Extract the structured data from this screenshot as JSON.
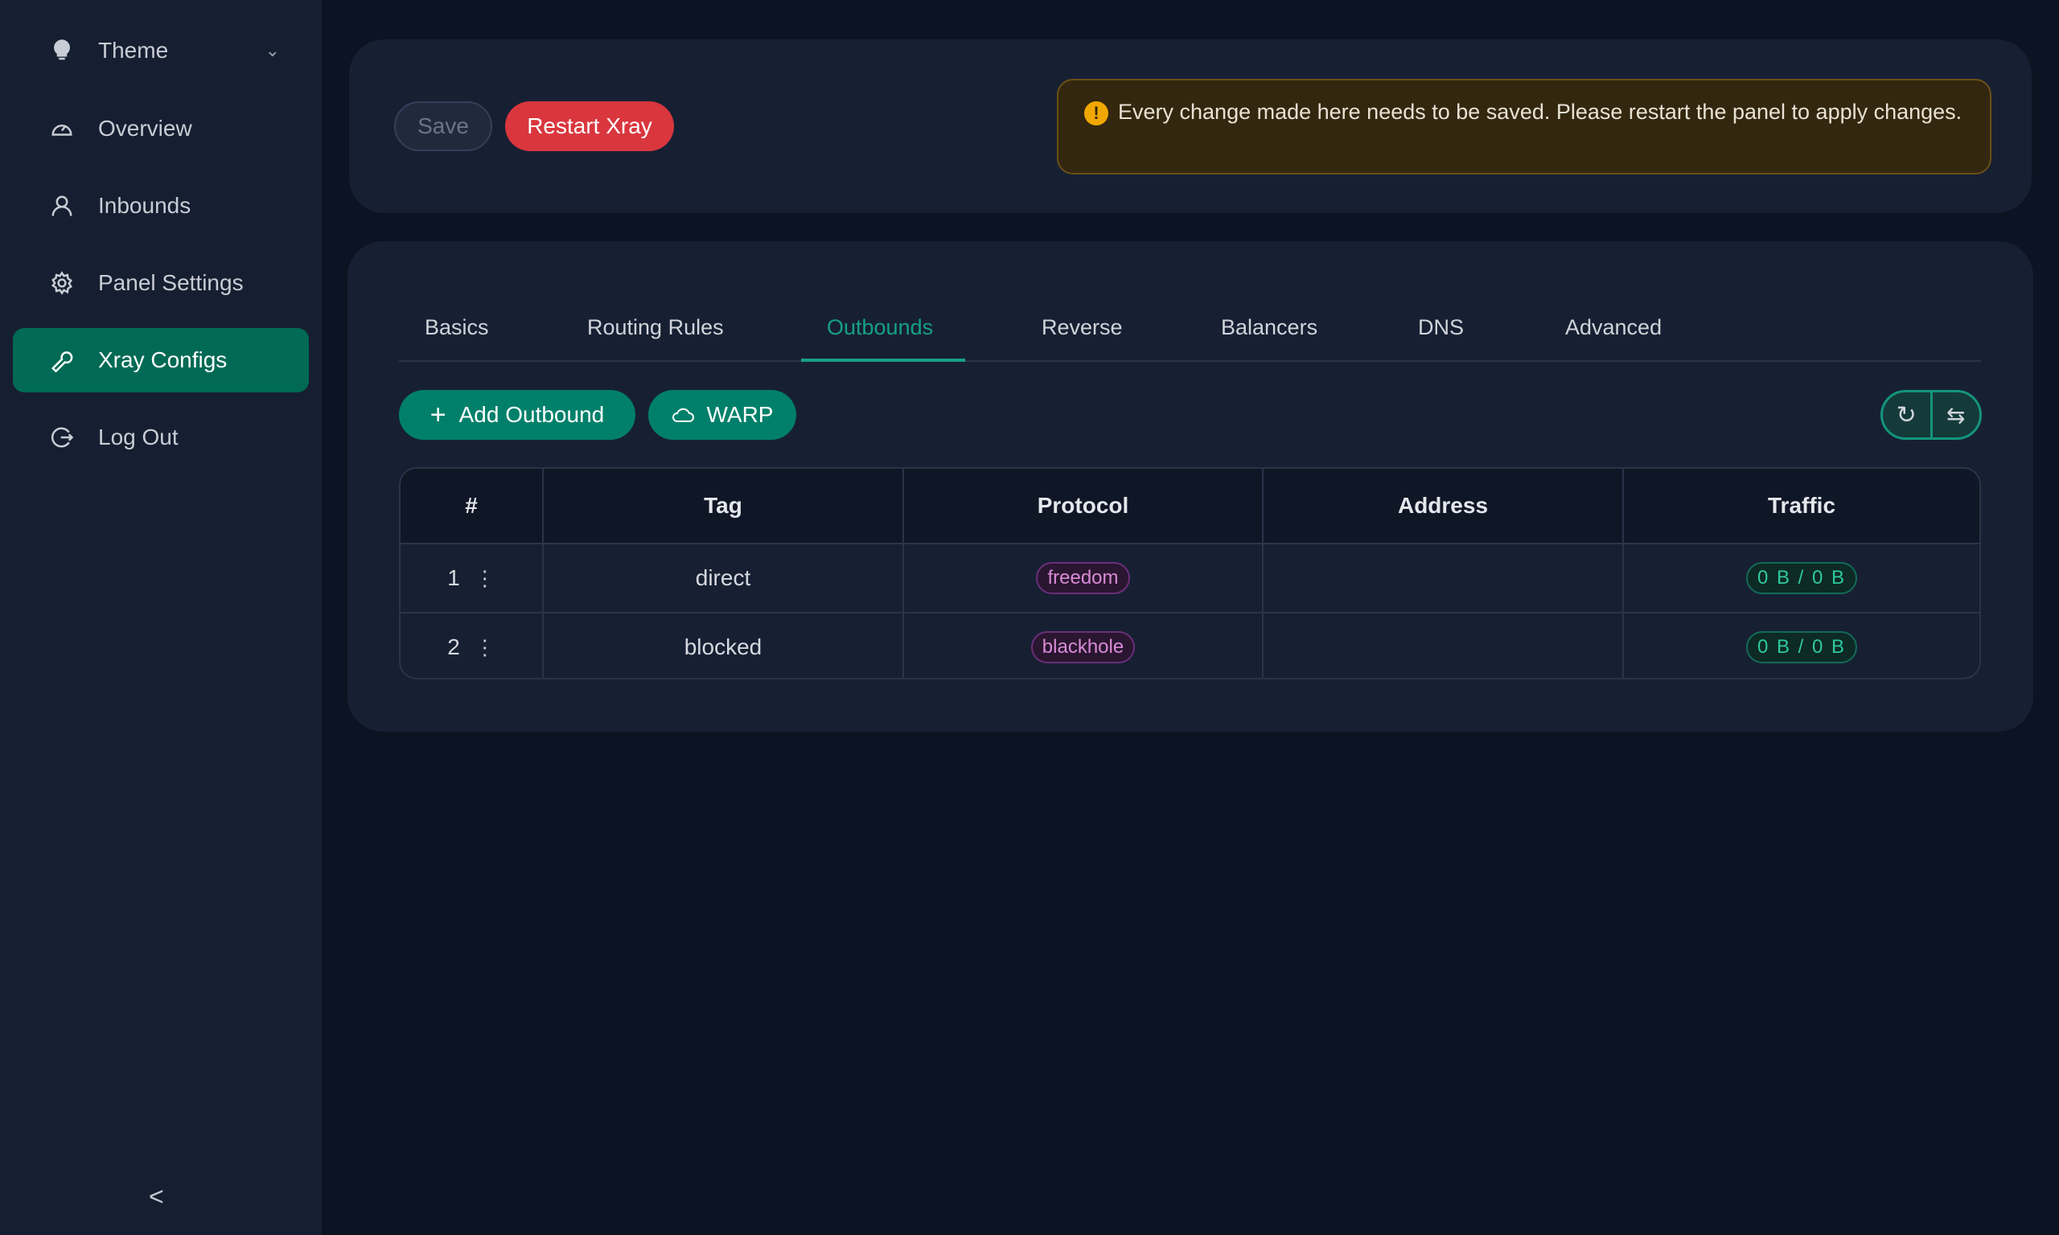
{
  "sidebar": {
    "items": [
      {
        "label": "Theme",
        "icon": "bulb-icon"
      },
      {
        "label": "Overview",
        "icon": "dashboard-icon"
      },
      {
        "label": "Inbounds",
        "icon": "user-icon"
      },
      {
        "label": "Panel Settings",
        "icon": "gear-icon"
      },
      {
        "label": "Xray Configs",
        "icon": "wrench-icon",
        "active": true
      },
      {
        "label": "Log Out",
        "icon": "logout-icon"
      }
    ],
    "collapse": "<"
  },
  "toolbar": {
    "save": "Save",
    "restart": "Restart Xray"
  },
  "alert": {
    "text": "Every change made here needs to be saved. Please restart the panel to apply changes."
  },
  "tabs": [
    "Basics",
    "Routing Rules",
    "Outbounds",
    "Reverse",
    "Balancers",
    "DNS",
    "Advanced"
  ],
  "active_tab": "Outbounds",
  "actions": {
    "add": "Add Outbound",
    "warp": "WARP"
  },
  "table": {
    "headers": [
      "#",
      "Tag",
      "Protocol",
      "Address",
      "Traffic"
    ],
    "rows": [
      {
        "index": "1",
        "tag": "direct",
        "protocol": "freedom",
        "address": "",
        "traffic": "0 B / 0 B"
      },
      {
        "index": "2",
        "tag": "blocked",
        "protocol": "blackhole",
        "address": "",
        "traffic": "0 B / 0 B"
      }
    ]
  },
  "colors": {
    "accent": "#006a55",
    "danger": "#d9363e",
    "warning": "#f0a800"
  }
}
